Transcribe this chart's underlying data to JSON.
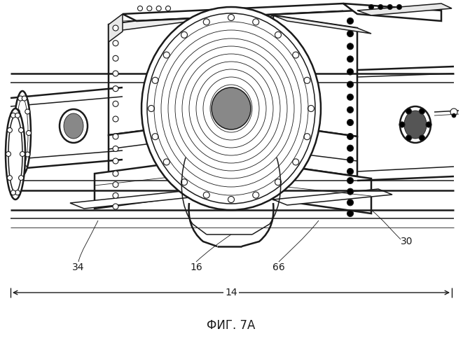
{
  "title": "ФИГ. 7А",
  "label_14": "14",
  "label_16": "16",
  "label_30": "30",
  "label_34": "34",
  "label_66": "66",
  "bg_color": "#ffffff",
  "line_color": "#1a1a1a",
  "figsize": [
    6.61,
    5.0
  ],
  "dpi": 100
}
